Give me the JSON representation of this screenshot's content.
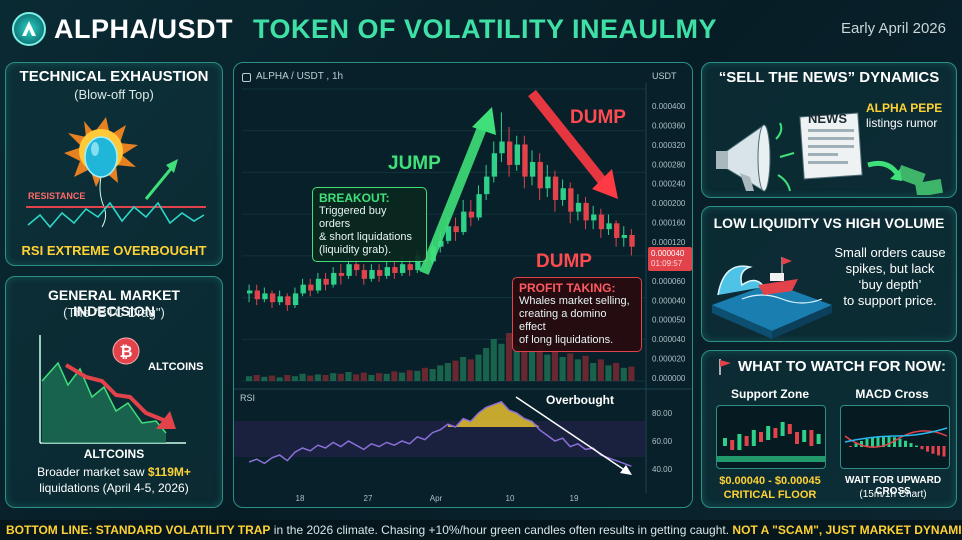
{
  "header": {
    "pair": "ALPHA/USDT",
    "subtitle": "TOKEN OF VOLATILITY INEAULMY",
    "date": "Early April 2026"
  },
  "left_top": {
    "title": "TECHNICAL EXHAUSTION",
    "subtitle": "(Blow-off Top)",
    "resistance_label": "RESISTANCE",
    "footer": "RSI EXTREME OVERBOUGHT"
  },
  "left_bottom": {
    "title": "GENERAL MARKET INDECISION",
    "subtitle": "(The \"BTC Drag\")",
    "altcoins_label": "ALTCOINS",
    "axis_label": "ALTCOINS",
    "note_prefix": "Broader market saw ",
    "note_amount": "$119M+",
    "note_line2": "liquidations (April 4-5, 2026)"
  },
  "right_top": {
    "title": "“SELL THE NEWS” DYNAMICS",
    "news_label": "NEWS",
    "rumor_title": "ALPHA PEPE",
    "rumor_text": "listings rumor"
  },
  "right_mid": {
    "title": "LOW LIQUIDITY VS HIGH VOLUME",
    "text1": "Small orders cause",
    "text2": "spikes, but lack",
    "text3": "‘buy depth’",
    "text4": "to support price."
  },
  "right_bottom": {
    "title": "WHAT TO WATCH FOR NOW:",
    "support_title": "Support Zone",
    "support_range": "$0.00040 - $0.00045",
    "support_floor": "CRITICAL FLOOR",
    "macd_title": "MACD Cross",
    "macd_line1": "WAIT FOR UPWARD CROSS",
    "macd_line2": "(15m/1h Chart)"
  },
  "bottom_line": {
    "lead": "BOTTOM LINE: STANDARD VOLATILITY TRAP",
    "middle": " in the 2026 climate. Chasing +10%/hour green candles often results in getting caught. ",
    "tail": "NOT A \"SCAM\", JUST MARKET DYNAMICS"
  },
  "annotations": {
    "jump": "JUMP",
    "dump_top": "DUMP",
    "dump_bottom": "DUMP",
    "breakout_title": "BREAKOUT:",
    "breakout_l1": "Triggered buy orders",
    "breakout_l2": "& short liquidations",
    "breakout_l3": "(liquidity grab).",
    "profit_title": "PROFIT TAKING:",
    "profit_l1": "Whales market selling,",
    "profit_l2": "creating a domino effect",
    "profit_l3": "of long liquidations.",
    "overbought": "Overbought",
    "current_price": "0.000040",
    "countdown": "01:09:57"
  },
  "colors": {
    "up": "#2fd08a",
    "down": "#e2434b",
    "accent": "#2bd6c8",
    "rsi": "#8b6fd8"
  },
  "chart_data": {
    "type": "candlestick",
    "title": "ALPHA / USDT , 1h",
    "currency_label": "USDT",
    "rsi_label": "RSI",
    "price_ticks": [
      "0.000400",
      "0.000360",
      "0.000320",
      "0.000280",
      "0.000240",
      "0.000200",
      "0.000160",
      "0.000120",
      "0.000080",
      "0.000060",
      "0.000040",
      "0.000050",
      "0.000040",
      "0.000020",
      "0.000000"
    ],
    "rsi_ticks": [
      "80.00",
      "60.00",
      "40.00"
    ],
    "x_ticks": [
      "18",
      "27",
      "Apr",
      "10",
      "19"
    ],
    "candles": [
      [
        0.3,
        0.31,
        0.27,
        0.33
      ],
      [
        0.31,
        0.28,
        0.26,
        0.33
      ],
      [
        0.28,
        0.3,
        0.27,
        0.32
      ],
      [
        0.3,
        0.27,
        0.25,
        0.31
      ],
      [
        0.27,
        0.29,
        0.26,
        0.31
      ],
      [
        0.29,
        0.26,
        0.24,
        0.3
      ],
      [
        0.26,
        0.3,
        0.25,
        0.32
      ],
      [
        0.3,
        0.33,
        0.29,
        0.35
      ],
      [
        0.33,
        0.31,
        0.29,
        0.35
      ],
      [
        0.31,
        0.35,
        0.3,
        0.37
      ],
      [
        0.35,
        0.33,
        0.31,
        0.37
      ],
      [
        0.33,
        0.37,
        0.32,
        0.39
      ],
      [
        0.37,
        0.36,
        0.33,
        0.4
      ],
      [
        0.36,
        0.4,
        0.35,
        0.42
      ],
      [
        0.4,
        0.38,
        0.36,
        0.42
      ],
      [
        0.38,
        0.35,
        0.33,
        0.4
      ],
      [
        0.35,
        0.38,
        0.34,
        0.4
      ],
      [
        0.38,
        0.36,
        0.34,
        0.4
      ],
      [
        0.36,
        0.39,
        0.35,
        0.41
      ],
      [
        0.39,
        0.37,
        0.35,
        0.41
      ],
      [
        0.37,
        0.4,
        0.36,
        0.43
      ],
      [
        0.4,
        0.38,
        0.36,
        0.42
      ],
      [
        0.38,
        0.43,
        0.37,
        0.45
      ],
      [
        0.43,
        0.41,
        0.39,
        0.45
      ],
      [
        0.41,
        0.46,
        0.4,
        0.48
      ],
      [
        0.46,
        0.48,
        0.44,
        0.51
      ],
      [
        0.48,
        0.53,
        0.47,
        0.56
      ],
      [
        0.53,
        0.51,
        0.48,
        0.56
      ],
      [
        0.51,
        0.58,
        0.5,
        0.62
      ],
      [
        0.58,
        0.56,
        0.53,
        0.62
      ],
      [
        0.56,
        0.64,
        0.55,
        0.67
      ],
      [
        0.64,
        0.7,
        0.62,
        0.74
      ],
      [
        0.7,
        0.78,
        0.68,
        0.82
      ],
      [
        0.78,
        0.82,
        0.75,
        0.92
      ],
      [
        0.82,
        0.74,
        0.7,
        0.87
      ],
      [
        0.74,
        0.81,
        0.72,
        0.84
      ],
      [
        0.81,
        0.7,
        0.66,
        0.84
      ],
      [
        0.7,
        0.75,
        0.67,
        0.79
      ],
      [
        0.75,
        0.66,
        0.62,
        0.78
      ],
      [
        0.66,
        0.7,
        0.63,
        0.74
      ],
      [
        0.7,
        0.62,
        0.58,
        0.72
      ],
      [
        0.62,
        0.66,
        0.6,
        0.69
      ],
      [
        0.66,
        0.58,
        0.54,
        0.68
      ],
      [
        0.58,
        0.61,
        0.55,
        0.64
      ],
      [
        0.61,
        0.55,
        0.52,
        0.63
      ],
      [
        0.55,
        0.57,
        0.52,
        0.6
      ],
      [
        0.57,
        0.52,
        0.49,
        0.59
      ],
      [
        0.52,
        0.54,
        0.5,
        0.57
      ],
      [
        0.54,
        0.49,
        0.46,
        0.55
      ],
      [
        0.49,
        0.5,
        0.46,
        0.53
      ],
      [
        0.5,
        0.46,
        0.43,
        0.52
      ]
    ],
    "volume": [
      0.08,
      0.1,
      0.07,
      0.09,
      0.06,
      0.1,
      0.08,
      0.12,
      0.09,
      0.11,
      0.1,
      0.13,
      0.12,
      0.15,
      0.11,
      0.14,
      0.1,
      0.13,
      0.12,
      0.16,
      0.14,
      0.18,
      0.17,
      0.22,
      0.2,
      0.26,
      0.3,
      0.34,
      0.4,
      0.36,
      0.44,
      0.55,
      0.7,
      0.62,
      0.8,
      0.58,
      0.66,
      0.5,
      0.6,
      0.44,
      0.52,
      0.4,
      0.46,
      0.36,
      0.42,
      0.3,
      0.36,
      0.26,
      0.3,
      0.22,
      0.24
    ],
    "rsi": [
      45,
      47,
      44,
      48,
      50,
      46,
      52,
      55,
      53,
      57,
      55,
      59,
      56,
      60,
      57,
      54,
      58,
      56,
      59,
      57,
      60,
      58,
      63,
      61,
      66,
      68,
      72,
      70,
      76,
      74,
      80,
      84,
      86,
      88,
      82,
      80,
      76,
      74,
      68,
      64,
      60,
      62,
      56,
      58,
      54,
      55,
      50,
      48,
      46,
      44,
      42
    ]
  }
}
